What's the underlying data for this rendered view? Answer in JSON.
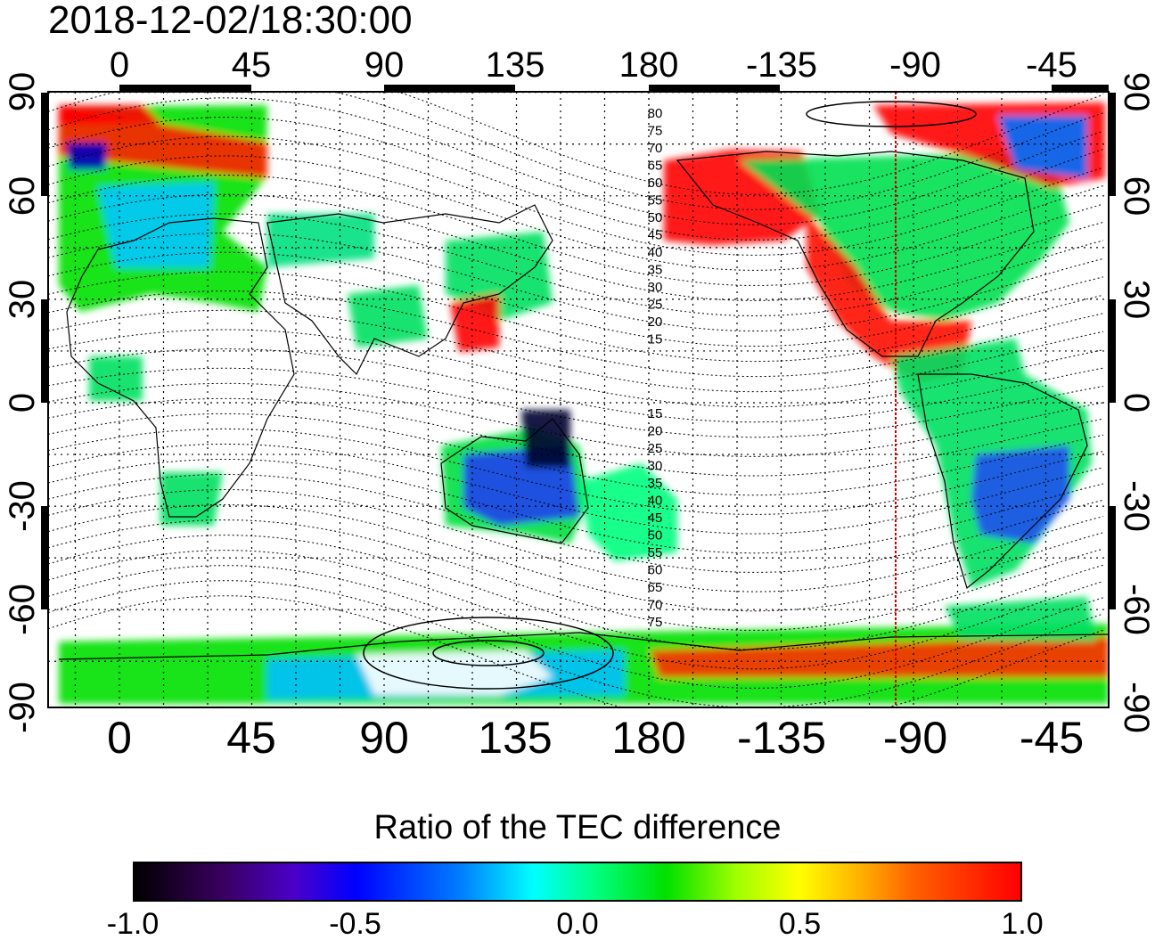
{
  "timestamp": "2018-12-02/18:30:00",
  "axes": {
    "top_lon_labels": [
      "0",
      "45",
      "90",
      "135",
      "180",
      "-135",
      "-90",
      "-45"
    ],
    "bottom_lon_labels": [
      "0",
      "45",
      "90",
      "135",
      "180",
      "-135",
      "-90",
      "-45"
    ],
    "left_lat_labels": [
      "90",
      "60",
      "30",
      "0",
      "-30",
      "-60",
      "-90"
    ],
    "right_lat_labels": [
      "90",
      "60",
      "30",
      "0",
      "-30",
      "-60",
      "-90"
    ]
  },
  "contour_labels_north": [
    "80",
    "75",
    "70",
    "65",
    "60",
    "55",
    "50",
    "45",
    "40",
    "35",
    "30",
    "25",
    "20",
    "15"
  ],
  "contour_labels_south": [
    "15",
    "20",
    "25",
    "30",
    "35",
    "40",
    "45",
    "50",
    "55",
    "60",
    "65",
    "70",
    "75"
  ],
  "colorbar": {
    "title": "Ratio of the TEC difference",
    "ticks": [
      "-1.0",
      "-0.5",
      "0.0",
      "0.5",
      "1.0"
    ],
    "range": [
      -1.0,
      1.0
    ]
  },
  "colors": {
    "strong_negative": "#000000",
    "negative": "#0000ff",
    "neutral": "#00e000",
    "positive": "#ffff00",
    "strong_positive": "#ff0000",
    "terminator_line": "#cc0000"
  }
}
